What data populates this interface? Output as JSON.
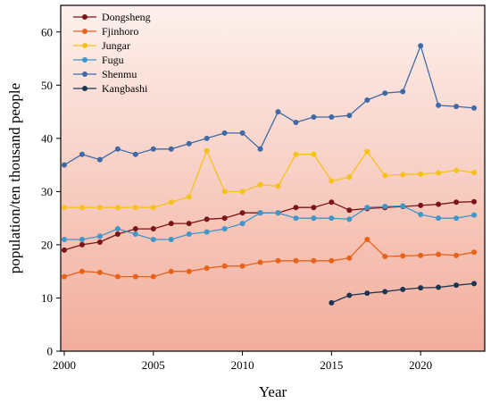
{
  "chart_data": {
    "type": "line",
    "title": "",
    "xlabel": "Year",
    "ylabel": "population/ten thousand people",
    "xlim": [
      1999.8,
      2023.6
    ],
    "ylim": [
      0,
      65
    ],
    "xticks": [
      2000,
      2005,
      2010,
      2015,
      2020
    ],
    "yticks": [
      0,
      10,
      20,
      30,
      40,
      50,
      60
    ],
    "grid": false,
    "legend_position": "top-left",
    "background": "vertical gradient from pale pink (top) to salmon (bottom)",
    "series": [
      {
        "name": "Dongsheng",
        "color": "#7b1518",
        "x": [
          2000,
          2001,
          2002,
          2003,
          2004,
          2005,
          2006,
          2007,
          2008,
          2009,
          2010,
          2011,
          2012,
          2013,
          2014,
          2015,
          2016,
          2017,
          2018,
          2019,
          2020,
          2021,
          2022,
          2023
        ],
        "values": [
          19,
          20,
          20.5,
          22,
          23,
          23,
          24,
          24,
          24.8,
          25,
          26,
          26,
          26,
          27,
          27,
          28,
          26.5,
          26.8,
          27,
          27.2,
          27.4,
          27.6,
          28,
          28.1
        ]
      },
      {
        "name": "Fjinhoro",
        "color": "#e8621a",
        "x": [
          2000,
          2001,
          2002,
          2003,
          2004,
          2005,
          2006,
          2007,
          2008,
          2009,
          2010,
          2011,
          2012,
          2013,
          2014,
          2015,
          2016,
          2017,
          2018,
          2019,
          2020,
          2021,
          2022,
          2023
        ],
        "values": [
          14,
          15,
          14.8,
          14,
          14,
          14,
          15,
          15,
          15.6,
          16,
          16,
          16.7,
          17,
          17,
          17,
          17,
          17.5,
          21,
          17.8,
          17.9,
          18,
          18.2,
          18,
          18.6
        ]
      },
      {
        "name": "Jungar",
        "color": "#f5c21b",
        "x": [
          2000,
          2001,
          2002,
          2003,
          2004,
          2005,
          2006,
          2007,
          2008,
          2009,
          2010,
          2011,
          2012,
          2013,
          2014,
          2015,
          2016,
          2017,
          2018,
          2019,
          2020,
          2021,
          2022,
          2023
        ],
        "values": [
          27,
          27,
          27,
          27,
          27,
          27,
          28,
          29,
          37.7,
          30,
          30,
          31.3,
          31,
          37,
          37,
          32,
          32.7,
          37.5,
          33,
          33.2,
          33.3,
          33.5,
          34,
          33.6
        ]
      },
      {
        "name": "Fugu",
        "color": "#3f96c8",
        "x": [
          2000,
          2001,
          2002,
          2003,
          2004,
          2005,
          2006,
          2007,
          2008,
          2009,
          2010,
          2011,
          2012,
          2013,
          2014,
          2015,
          2016,
          2017,
          2018,
          2019,
          2020,
          2021,
          2022,
          2023
        ],
        "values": [
          21,
          21,
          21.6,
          23,
          22,
          21,
          21,
          22,
          22.4,
          23,
          24,
          26,
          26,
          25,
          25,
          25,
          24.8,
          27,
          27.2,
          27.3,
          25.7,
          25,
          25,
          25.6
        ]
      },
      {
        "name": "Shenmu",
        "color": "#3f6aa6",
        "x": [
          2000,
          2001,
          2002,
          2003,
          2004,
          2005,
          2006,
          2007,
          2008,
          2009,
          2010,
          2011,
          2012,
          2013,
          2014,
          2015,
          2016,
          2017,
          2018,
          2019,
          2020,
          2021,
          2022,
          2023
        ],
        "values": [
          35,
          37,
          36,
          38,
          37,
          38,
          38,
          39,
          40,
          41,
          41,
          38,
          45,
          43,
          44,
          44,
          44.3,
          47.2,
          48.5,
          48.8,
          57.4,
          46.2,
          46,
          45.7
        ]
      },
      {
        "name": "Kangbashi",
        "color": "#1b3552",
        "x": [
          2015,
          2016,
          2017,
          2018,
          2019,
          2020,
          2021,
          2022,
          2023
        ],
        "values": [
          9.1,
          10.5,
          10.9,
          11.2,
          11.6,
          11.9,
          12,
          12.4,
          12.7
        ]
      }
    ]
  }
}
